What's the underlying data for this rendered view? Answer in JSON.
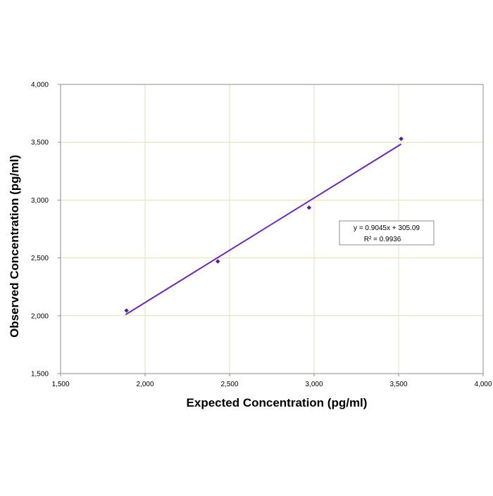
{
  "chart_data": {
    "type": "scatter",
    "title": "",
    "xlabel": "Expected Concentration (pg/ml)",
    "ylabel": "Observed Concentration (pg/ml)",
    "xlim": [
      1500,
      4000
    ],
    "ylim": [
      1500,
      4000
    ],
    "x_ticks": [
      1500,
      2000,
      2500,
      3000,
      3500,
      4000
    ],
    "y_ticks": [
      1500,
      2000,
      2500,
      3000,
      3500,
      4000
    ],
    "x_tick_labels": [
      "1,500",
      "2,000",
      "2,500",
      "3,000",
      "3,500",
      "4,000"
    ],
    "y_tick_labels": [
      "1,500",
      "2,000",
      "2,500",
      "3,000",
      "3,500",
      "4,000"
    ],
    "grid": true,
    "series": [
      {
        "x": [
          1890,
          2430,
          2970,
          3515
        ],
        "y": [
          2045,
          2470,
          2935,
          3530
        ],
        "color": "#5a1aa0",
        "marker": "diamond"
      }
    ],
    "trendline": {
      "slope": 0.9045,
      "intercept": 305.09,
      "x_range": [
        1885,
        3515
      ],
      "color": "#6a2ab8",
      "equation": "y = 0.9045x + 305.09",
      "r_squared": "R² = 0.9936"
    },
    "colors": {
      "gridline": "#e0e0b8",
      "plot_border": "#8c8c8c"
    }
  }
}
